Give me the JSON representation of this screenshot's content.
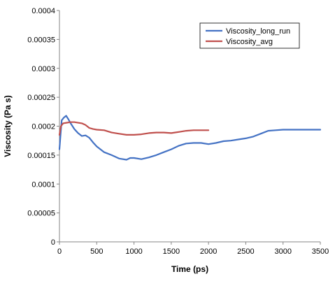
{
  "chart_data": {
    "type": "line",
    "title": "",
    "xlabel": "Time (ps)",
    "ylabel": "Viscosity (Pa s)",
    "xlim": [
      0,
      3500
    ],
    "ylim": [
      0,
      0.0004
    ],
    "x_ticks": [
      "0",
      "500",
      "1000",
      "1500",
      "2000",
      "2500",
      "3000",
      "3500"
    ],
    "y_ticks": [
      "0",
      "0.00005",
      "0.0001",
      "0.00015",
      "0.0002",
      "0.00025",
      "0.0003",
      "0.00035",
      "0.0004"
    ],
    "grid": false,
    "legend_position": "top-right",
    "series": [
      {
        "name": "Viscosity_long_run",
        "color": "#4472c4",
        "x": [
          0,
          30,
          60,
          90,
          120,
          150,
          200,
          250,
          300,
          350,
          400,
          450,
          500,
          600,
          700,
          800,
          900,
          950,
          1000,
          1100,
          1200,
          1300,
          1400,
          1500,
          1600,
          1700,
          1800,
          1900,
          2000,
          2100,
          2200,
          2300,
          2400,
          2500,
          2600,
          2700,
          2800,
          2900,
          3000,
          3100,
          3200,
          3300,
          3400,
          3500
        ],
        "y": [
          0.00016,
          0.00021,
          0.000215,
          0.000218,
          0.000212,
          0.000205,
          0.000195,
          0.000188,
          0.000183,
          0.000184,
          0.00018,
          0.000172,
          0.000165,
          0.000155,
          0.00015,
          0.000144,
          0.000142,
          0.000145,
          0.000145,
          0.000143,
          0.000146,
          0.00015,
          0.000155,
          0.00016,
          0.000166,
          0.00017,
          0.000171,
          0.000171,
          0.000169,
          0.000171,
          0.000174,
          0.000175,
          0.000177,
          0.000179,
          0.000182,
          0.000187,
          0.000192,
          0.000193,
          0.000194,
          0.000194,
          0.000194,
          0.000194,
          0.000194,
          0.000194
        ]
      },
      {
        "name": "Viscosity_avg",
        "color": "#c0504d",
        "x": [
          0,
          20,
          50,
          100,
          150,
          200,
          300,
          350,
          400,
          450,
          500,
          600,
          700,
          800,
          900,
          1000,
          1100,
          1200,
          1300,
          1400,
          1500,
          1600,
          1700,
          1800,
          1900,
          2000
        ],
        "y": [
          0.000185,
          0.0002,
          0.000205,
          0.000206,
          0.000207,
          0.000207,
          0.000205,
          0.000202,
          0.000197,
          0.000195,
          0.000194,
          0.000193,
          0.000189,
          0.000187,
          0.000185,
          0.000185,
          0.000186,
          0.000188,
          0.000189,
          0.000189,
          0.000188,
          0.00019,
          0.000192,
          0.000193,
          0.000193,
          0.000193
        ]
      }
    ]
  }
}
